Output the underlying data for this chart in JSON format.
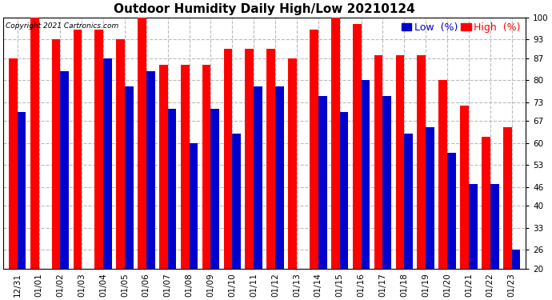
{
  "title": "Outdoor Humidity Daily High/Low 20210124",
  "copyright": "Copyright 2021 Cartronics.com",
  "legend_low": "Low  (%)",
  "legend_high": "High  (%)",
  "dates": [
    "12/31",
    "01/01",
    "01/02",
    "01/03",
    "01/04",
    "01/05",
    "01/06",
    "01/07",
    "01/08",
    "01/09",
    "01/10",
    "01/11",
    "01/12",
    "01/13",
    "01/14",
    "01/15",
    "01/16",
    "01/17",
    "01/18",
    "01/19",
    "01/20",
    "01/21",
    "01/22",
    "01/23"
  ],
  "high_values": [
    87,
    100,
    93,
    96,
    96,
    93,
    100,
    85,
    85,
    85,
    90,
    90,
    90,
    87,
    96,
    100,
    98,
    88,
    88,
    88,
    80,
    72,
    62,
    65
  ],
  "low_values": [
    70,
    20,
    83,
    20,
    87,
    78,
    83,
    71,
    60,
    71,
    63,
    78,
    78,
    20,
    75,
    70,
    80,
    75,
    63,
    65,
    57,
    47,
    47,
    26
  ],
  "ylim": [
    20,
    100
  ],
  "yticks": [
    20,
    26,
    33,
    40,
    46,
    53,
    60,
    67,
    73,
    80,
    87,
    93,
    100
  ],
  "bar_color_high": "#FF0000",
  "bar_color_low": "#0000CC",
  "background_color": "#FFFFFF",
  "grid_color": "#BBBBBB",
  "title_fontsize": 11,
  "tick_fontsize": 7.5,
  "legend_fontsize": 9,
  "bar_width": 0.4
}
